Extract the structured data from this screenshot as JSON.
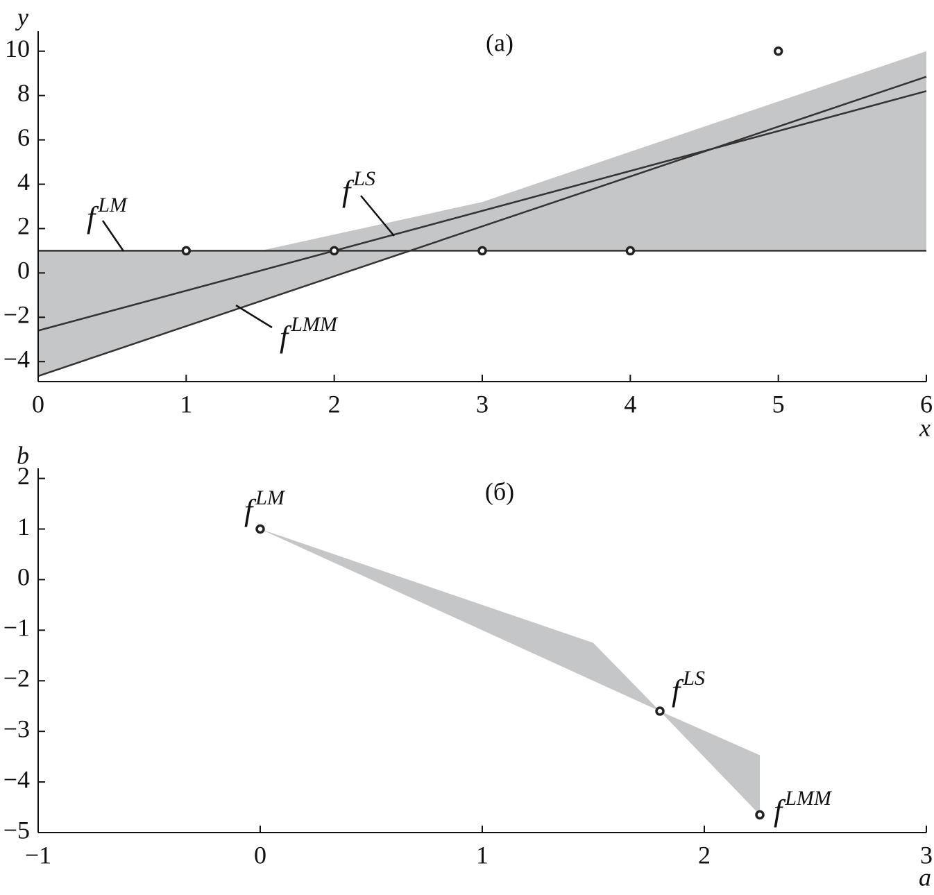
{
  "chart_data": [
    {
      "type": "scatter",
      "label": "(a)",
      "xlabel": "x",
      "ylabel": "y",
      "xlim": [
        0,
        6
      ],
      "ylim": [
        -4.9,
        10.9
      ],
      "xticks": [
        0,
        1,
        2,
        3,
        4,
        5,
        6
      ],
      "yticks": [
        {
          "value": -4,
          "label": "−4"
        },
        {
          "value": -2,
          "label": "−2"
        },
        0,
        2,
        4,
        6,
        8,
        10
      ],
      "region": {
        "x": [
          0,
          1.5,
          3,
          6,
          6,
          2.5,
          0
        ],
        "values": [
          1,
          1,
          3.2,
          10,
          1,
          1,
          -4.65
        ],
        "color": "#c5c6c8"
      },
      "lines": [
        {
          "x": [
            0,
            6
          ],
          "values": [
            1,
            1
          ],
          "color": "#333333"
        },
        {
          "x": [
            0,
            6
          ],
          "values": [
            -2.6,
            8.2
          ],
          "color": "#333333"
        },
        {
          "x": [
            0,
            6
          ],
          "values": [
            -4.65,
            8.85
          ],
          "color": "#333333"
        }
      ],
      "points": {
        "x": [
          1,
          2,
          3,
          4,
          5
        ],
        "values": [
          1,
          1,
          1,
          1,
          10
        ],
        "color": "#222222"
      },
      "annotations": [
        {
          "text": "f",
          "sup": "LM"
        },
        {
          "text": "f",
          "sup": "LS"
        },
        {
          "text": "f",
          "sup": "LMM"
        }
      ]
    },
    {
      "type": "scatter",
      "label": "(б)",
      "xlabel": "a",
      "ylabel": "b",
      "xlim": [
        -1,
        3
      ],
      "ylim": [
        -5,
        2.2
      ],
      "xticks": [
        {
          "value": -1,
          "label": "−1"
        },
        0,
        1,
        2,
        3
      ],
      "yticks": [
        {
          "value": -5,
          "label": "−5"
        },
        {
          "value": -4,
          "label": "−4"
        },
        {
          "value": -3,
          "label": "−3"
        },
        {
          "value": -2,
          "label": "−2"
        },
        {
          "value": -1,
          "label": "−1"
        },
        0,
        1,
        2
      ],
      "region": {
        "x": [
          0,
          1.5,
          1.8,
          2.25,
          2.25,
          1.8
        ],
        "values": [
          1,
          -1.25,
          -2.6,
          -3.47,
          -4.65,
          -2.6
        ],
        "color": "#c5c6c8"
      },
      "points": {
        "x": [
          0,
          1.8,
          2.25
        ],
        "values": [
          1,
          -2.6,
          -4.65
        ],
        "color": "#222222"
      },
      "annotations": [
        {
          "text": "f",
          "sup": "LM"
        },
        {
          "text": "f",
          "sup": "LS"
        },
        {
          "text": "f",
          "sup": "LMM"
        }
      ]
    }
  ]
}
